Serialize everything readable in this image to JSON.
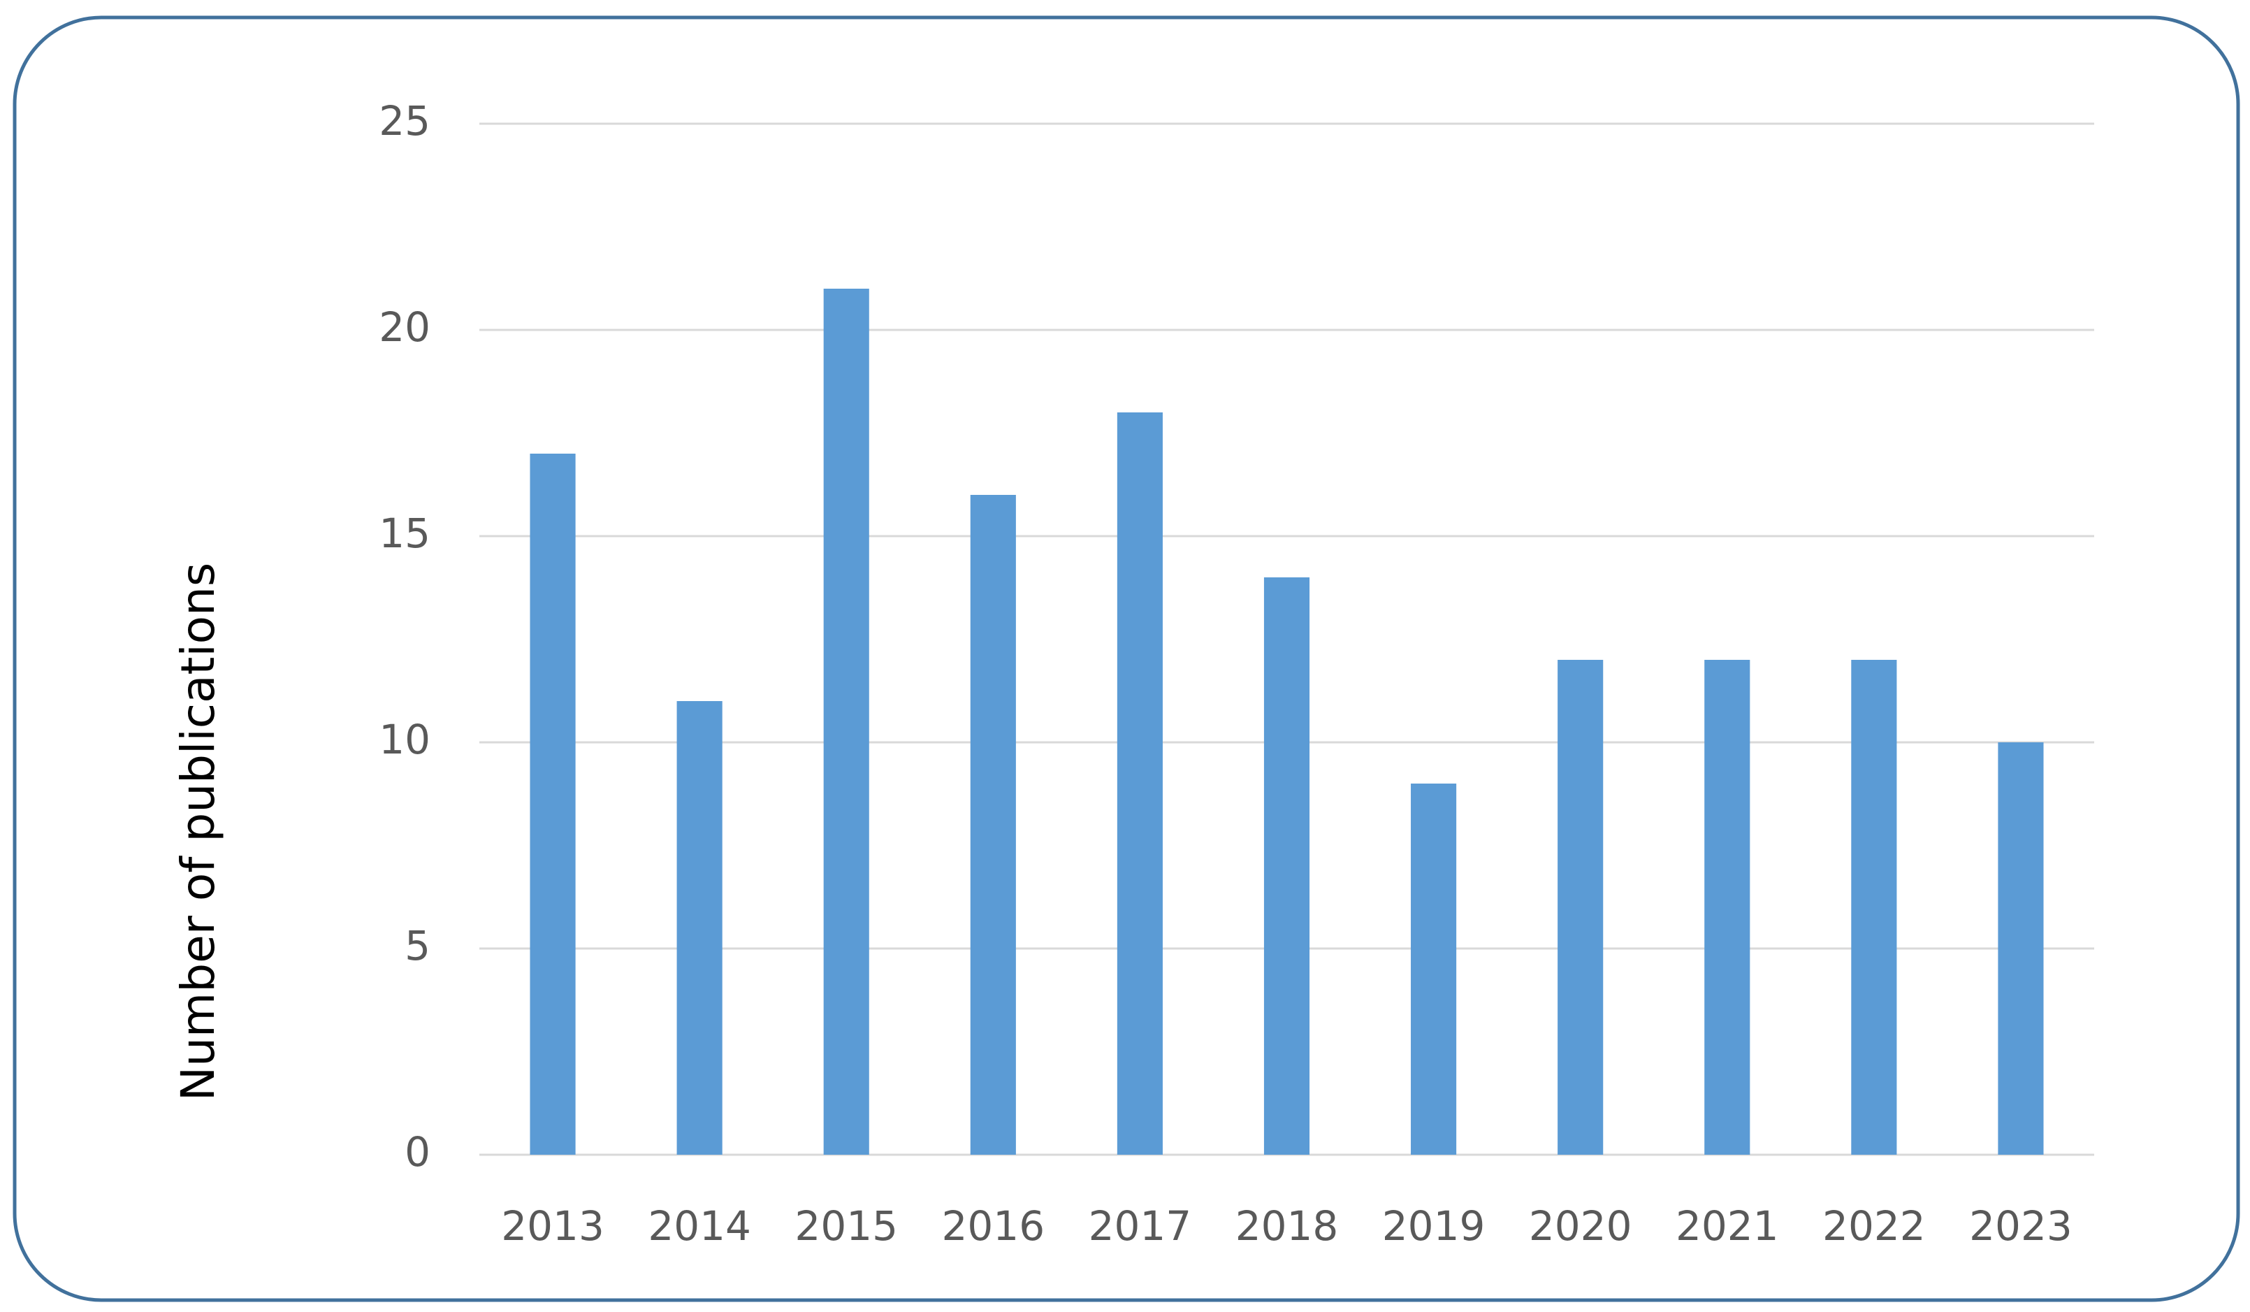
{
  "chart_data": {
    "type": "bar",
    "y_label": "Number of publications",
    "categories": [
      "2013",
      "2014",
      "2015",
      "2016",
      "2017",
      "2018",
      "2019",
      "2020",
      "2021",
      "2022",
      "2023"
    ],
    "values": [
      17,
      11,
      21,
      16,
      18,
      14,
      9,
      12,
      12,
      12,
      10
    ],
    "color": "#5b9bd5",
    "ylim": [
      0,
      25
    ],
    "yticks": [
      0,
      5,
      10,
      15,
      20,
      25
    ],
    "grid": true
  }
}
